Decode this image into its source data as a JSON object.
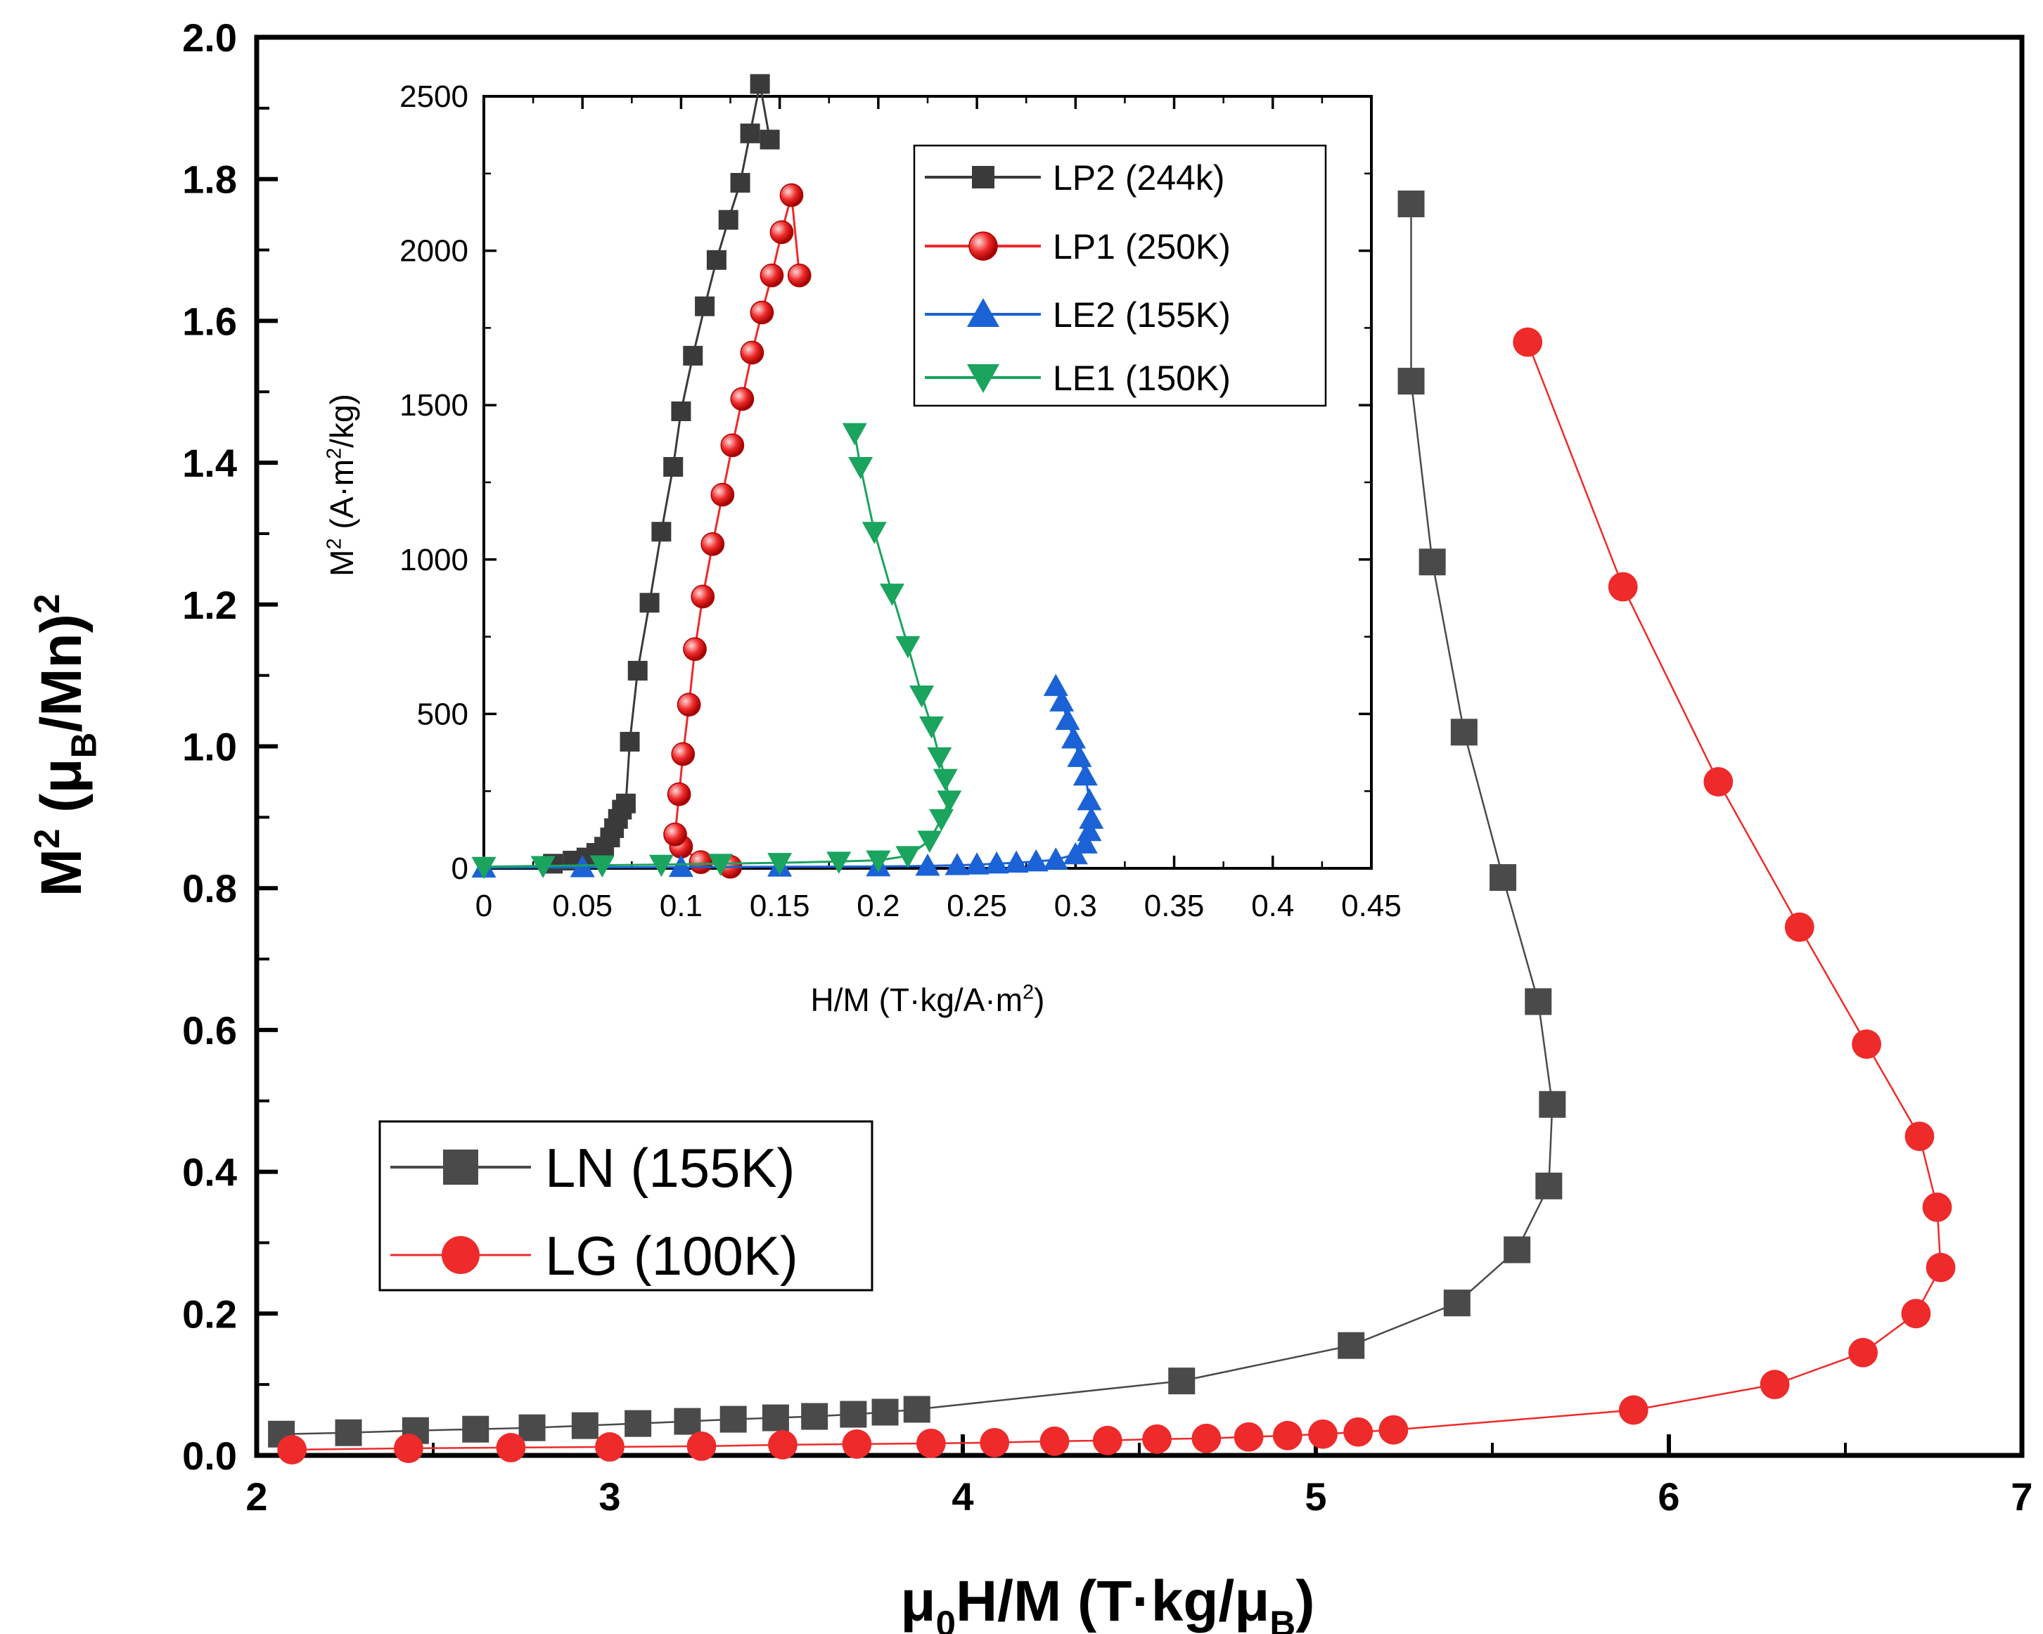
{
  "chart_data": [
    {
      "id": "main",
      "type": "line",
      "xlabel_parts": [
        "μ",
        "0",
        "H/M (T·kg/μ",
        "B",
        ")"
      ],
      "ylabel_parts": [
        "M",
        "2",
        " (μ",
        "B",
        "/Mn)",
        "2"
      ],
      "xlim": [
        2,
        7
      ],
      "ylim": [
        0,
        2.0
      ],
      "xticks": [
        2,
        3,
        4,
        5,
        6,
        7
      ],
      "xtick_labels": [
        "2",
        "3",
        "4",
        "5",
        "6",
        "7"
      ],
      "yticks": [
        0,
        0.2,
        0.4,
        0.6,
        0.8,
        1.0,
        1.2,
        1.4,
        1.6,
        1.8,
        2.0
      ],
      "ytick_labels": [
        "0.0",
        "0.2",
        "0.4",
        "0.6",
        "0.8",
        "1.0",
        "1.2",
        "1.4",
        "1.6",
        "1.8",
        "2.0"
      ],
      "grid": false,
      "legend_position": "lower-left",
      "series": [
        {
          "name": "LN (155K)",
          "color": "#4a4a4a",
          "marker": "square",
          "x": [
            2.07,
            2.26,
            2.45,
            2.62,
            2.78,
            2.93,
            3.08,
            3.22,
            3.35,
            3.47,
            3.58,
            3.69,
            3.78,
            3.87,
            4.62,
            5.1,
            5.4,
            5.57,
            5.66,
            5.67,
            5.63,
            5.53,
            5.42,
            5.33,
            5.27,
            5.27
          ],
          "y": [
            0.03,
            0.032,
            0.035,
            0.037,
            0.039,
            0.042,
            0.045,
            0.048,
            0.051,
            0.053,
            0.055,
            0.058,
            0.061,
            0.065,
            0.105,
            0.155,
            0.215,
            0.29,
            0.38,
            0.495,
            0.64,
            0.815,
            1.02,
            1.26,
            1.515,
            1.765
          ]
        },
        {
          "name": "LG (100K)",
          "color": "#ee2a2a",
          "marker": "circle",
          "x": [
            2.1,
            2.43,
            2.72,
            3.0,
            3.26,
            3.49,
            3.7,
            3.91,
            4.09,
            4.26,
            4.41,
            4.55,
            4.69,
            4.81,
            4.92,
            5.02,
            5.12,
            5.22,
            5.9,
            6.3,
            6.55,
            6.7,
            6.77,
            6.76,
            6.71,
            6.56,
            6.37,
            6.14,
            5.87,
            5.6
          ],
          "y": [
            0.008,
            0.01,
            0.011,
            0.012,
            0.013,
            0.015,
            0.016,
            0.017,
            0.018,
            0.02,
            0.021,
            0.023,
            0.024,
            0.026,
            0.028,
            0.03,
            0.033,
            0.036,
            0.064,
            0.1,
            0.145,
            0.2,
            0.265,
            0.35,
            0.45,
            0.58,
            0.745,
            0.95,
            1.225,
            1.57
          ]
        }
      ]
    },
    {
      "id": "inset",
      "type": "line",
      "xlabel_parts": [
        "H/M (T·kg/A·m",
        "2",
        ")"
      ],
      "ylabel_parts": [
        "M",
        "2",
        " (A·m",
        "2",
        "/kg)"
      ],
      "xlim": [
        0,
        0.45
      ],
      "ylim": [
        0,
        2500
      ],
      "xticks": [
        0,
        0.05,
        0.1,
        0.15,
        0.2,
        0.25,
        0.3,
        0.35,
        0.4,
        0.45
      ],
      "xtick_labels": [
        "0",
        "0.05",
        "0.1",
        "0.15",
        "0.2",
        "0.25",
        "0.3",
        "0.35",
        "0.4",
        "0.45"
      ],
      "yticks": [
        0,
        500,
        1000,
        1500,
        2000,
        2500
      ],
      "ytick_labels": [
        "0",
        "500",
        "1000",
        "1500",
        "2000",
        "2500"
      ],
      "grid": false,
      "legend_position": "top-right",
      "series": [
        {
          "name": "LP2 (244k)",
          "color": "#3a3a3a",
          "marker": "square",
          "x": [
            0.035,
            0.045,
            0.052,
            0.057,
            0.061,
            0.064,
            0.066,
            0.068,
            0.07,
            0.072,
            0.074,
            0.078,
            0.084,
            0.09,
            0.096,
            0.1,
            0.106,
            0.112,
            0.118,
            0.124,
            0.13,
            0.135,
            0.14,
            0.145
          ],
          "y": [
            15,
            25,
            35,
            50,
            70,
            100,
            130,
            160,
            190,
            210,
            410,
            640,
            860,
            1090,
            1300,
            1480,
            1660,
            1820,
            1970,
            2100,
            2220,
            2380,
            2540,
            2360
          ]
        },
        {
          "name": "LP1 (250K)",
          "color": "#ee2a2a",
          "marker": "ball",
          "x": [
            0.125,
            0.11,
            0.1,
            0.097,
            0.099,
            0.101,
            0.104,
            0.107,
            0.111,
            0.116,
            0.121,
            0.126,
            0.131,
            0.136,
            0.141,
            0.146,
            0.151,
            0.156,
            0.16
          ],
          "y": [
            5,
            20,
            70,
            110,
            240,
            370,
            530,
            710,
            880,
            1050,
            1210,
            1370,
            1520,
            1670,
            1800,
            1920,
            2060,
            2180,
            1920
          ]
        },
        {
          "name": "LE2 (155K)",
          "color": "#1a62d6",
          "marker": "triangle-up",
          "x": [
            0.0,
            0.05,
            0.1,
            0.15,
            0.2,
            0.225,
            0.24,
            0.25,
            0.26,
            0.27,
            0.28,
            0.29,
            0.3,
            0.305,
            0.307,
            0.308,
            0.307,
            0.305,
            0.302,
            0.299,
            0.296,
            0.293,
            0.29
          ],
          "y": [
            2,
            3,
            4,
            5,
            6,
            8,
            10,
            12,
            15,
            18,
            22,
            28,
            45,
            80,
            120,
            160,
            220,
            300,
            360,
            420,
            480,
            540,
            590
          ]
        },
        {
          "name": "LE1 (150K)",
          "color": "#1aa45e",
          "marker": "triangle-down",
          "x": [
            0.0,
            0.03,
            0.06,
            0.09,
            0.12,
            0.15,
            0.18,
            0.2,
            0.215,
            0.226,
            0.232,
            0.236,
            0.234,
            0.231,
            0.227,
            0.222,
            0.215,
            0.207,
            0.198,
            0.191,
            0.188
          ],
          "y": [
            5,
            8,
            10,
            12,
            15,
            18,
            22,
            26,
            40,
            90,
            160,
            220,
            290,
            360,
            460,
            560,
            720,
            890,
            1090,
            1300,
            1410
          ]
        }
      ]
    }
  ]
}
